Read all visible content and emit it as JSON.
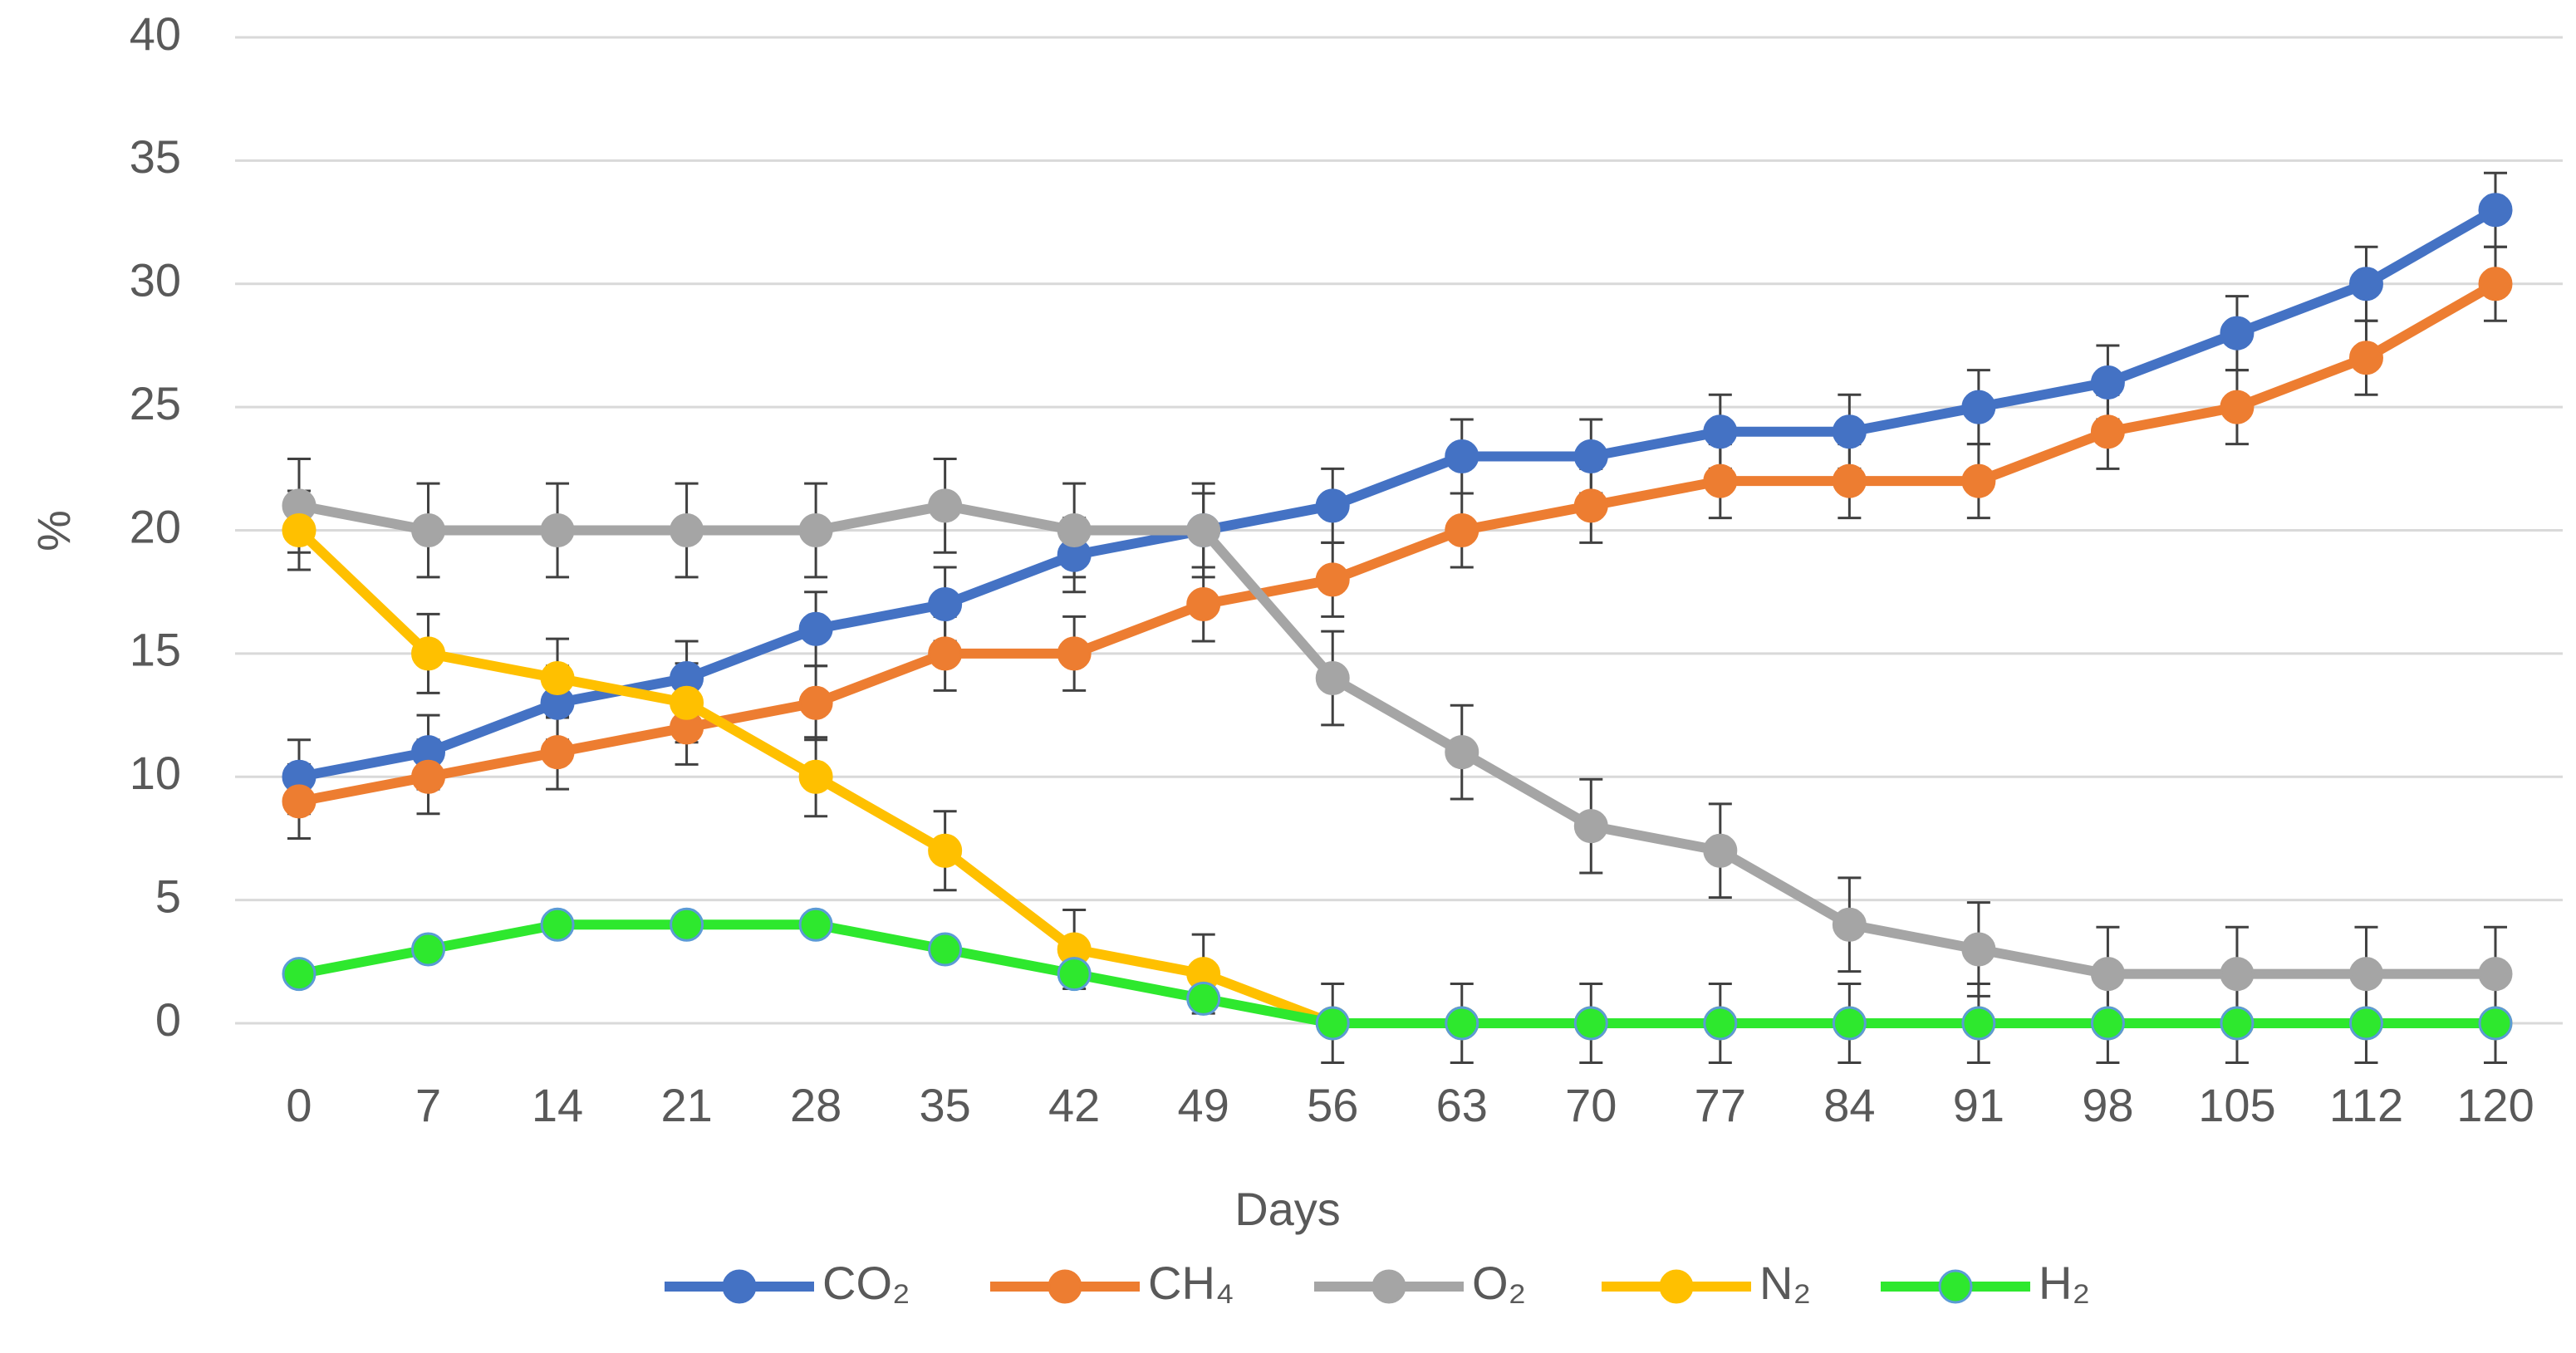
{
  "chart_data": {
    "type": "line",
    "xlabel": "Days",
    "ylabel": "%",
    "categories": [
      "0",
      "7",
      "14",
      "21",
      "28",
      "35",
      "42",
      "49",
      "56",
      "63",
      "70",
      "77",
      "84",
      "91",
      "98",
      "105",
      "112",
      "120"
    ],
    "ylim": [
      0,
      40
    ],
    "yticks": [
      0,
      5,
      10,
      15,
      20,
      25,
      30,
      35,
      40
    ],
    "grid": true,
    "legend": "bottom",
    "series": [
      {
        "name": "CO₂",
        "color": "#4472c4",
        "values": [
          10,
          11,
          13,
          14,
          16,
          17,
          19,
          20,
          21,
          23,
          23,
          24,
          24,
          25,
          26,
          28,
          30,
          33
        ],
        "errors": [
          1.5,
          1.5,
          1.5,
          1.5,
          1.5,
          1.5,
          1.5,
          1.5,
          1.5,
          1.5,
          1.5,
          1.5,
          1.5,
          1.5,
          1.5,
          1.5,
          1.5,
          1.5
        ]
      },
      {
        "name": "CH₄",
        "color": "#ed7d31",
        "values": [
          9,
          10,
          11,
          12,
          13,
          15,
          15,
          17,
          18,
          20,
          21,
          22,
          22,
          22,
          24,
          25,
          27,
          30
        ],
        "errors": [
          1.5,
          1.5,
          1.5,
          1.5,
          1.5,
          1.5,
          1.5,
          1.5,
          1.5,
          1.5,
          1.5,
          1.5,
          1.5,
          1.5,
          1.5,
          1.5,
          1.5,
          1.5
        ]
      },
      {
        "name": "O₂",
        "color": "#a5a5a5",
        "values": [
          21,
          20,
          20,
          20,
          20,
          21,
          20,
          20,
          14,
          11,
          8,
          7,
          4,
          3,
          2,
          2,
          2,
          2
        ],
        "errors": [
          1.9,
          1.9,
          1.9,
          1.9,
          1.9,
          1.9,
          1.9,
          1.9,
          1.9,
          1.9,
          1.9,
          1.9,
          1.9,
          1.9,
          1.9,
          1.9,
          1.9,
          1.9
        ]
      },
      {
        "name": "N₂",
        "color": "#ffc000",
        "values": [
          20,
          15,
          14,
          13,
          10,
          7,
          3,
          2,
          0,
          0,
          0,
          0,
          0,
          0,
          0,
          0,
          0,
          0
        ],
        "errors": [
          1.6,
          1.6,
          1.6,
          1.6,
          1.6,
          1.6,
          1.6,
          1.6,
          1.6,
          1.6,
          1.6,
          1.6,
          1.6,
          1.6,
          1.6,
          1.6,
          1.6,
          1.6
        ]
      },
      {
        "name": "H₂",
        "color": "#2ee82e",
        "values": [
          2,
          3,
          4,
          4,
          4,
          3,
          2,
          1,
          0,
          0,
          0,
          0,
          0,
          0,
          0,
          0,
          0,
          0
        ]
      }
    ]
  }
}
